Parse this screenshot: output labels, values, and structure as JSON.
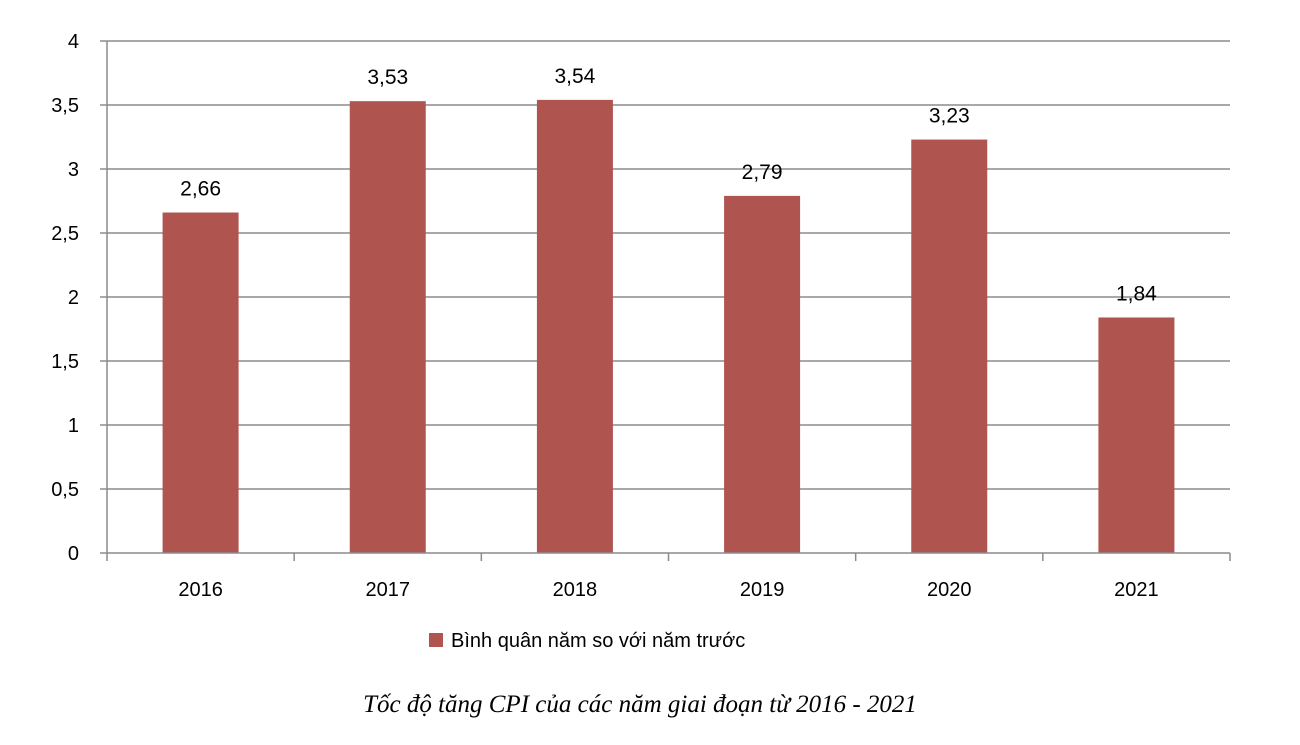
{
  "chart_data": {
    "type": "bar",
    "categories": [
      "2016",
      "2017",
      "2018",
      "2019",
      "2020",
      "2021"
    ],
    "series": [
      {
        "name": "Bình quân năm so với năm trước",
        "values": [
          2.66,
          3.53,
          3.54,
          2.79,
          3.23,
          1.84
        ],
        "labels": [
          "2,66",
          "3,53",
          "3,54",
          "2,79",
          "3,23",
          "1,84"
        ],
        "color": "#B05450"
      }
    ],
    "ylim": [
      0,
      4
    ],
    "yticks": [
      0,
      0.5,
      1,
      1.5,
      2,
      2.5,
      3,
      3.5,
      4
    ],
    "ytick_labels": [
      "0",
      "0,5",
      "1",
      "1,5",
      "2",
      "2,5",
      "3",
      "3,5",
      "4"
    ],
    "grid": true,
    "legend_position": "bottom",
    "caption": "Tốc độ tăng CPI của các năm giai đoạn từ 2016 - 2021",
    "gridline_color": "#8C8C8C"
  }
}
